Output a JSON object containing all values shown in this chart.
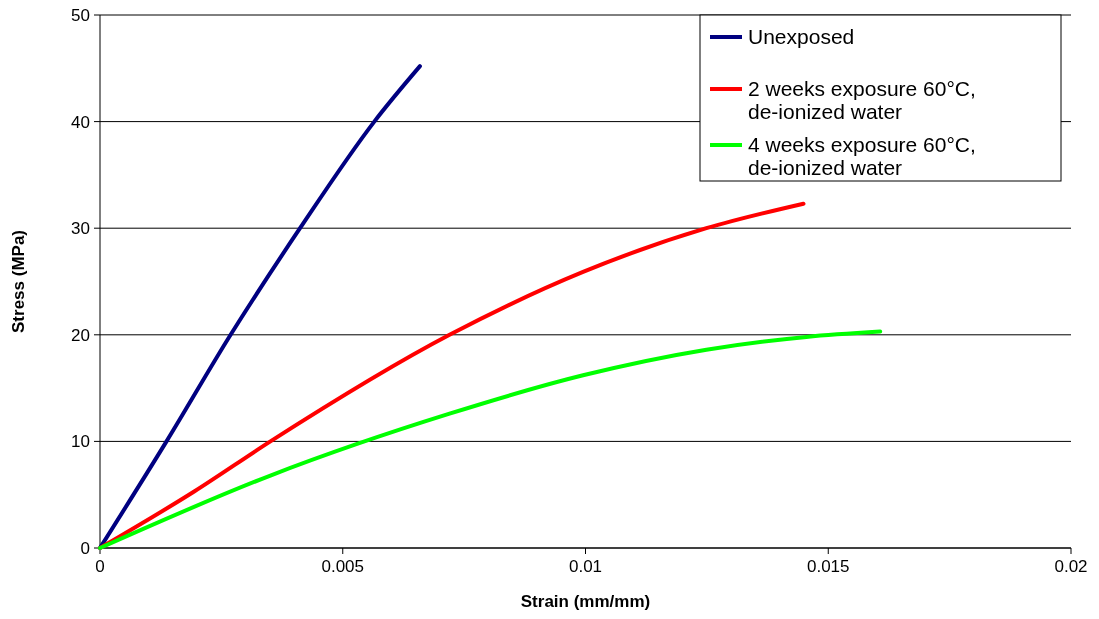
{
  "chart_data": {
    "type": "line",
    "xlabel": "Strain (mm/mm)",
    "ylabel": "Stress (MPa)",
    "xlim": [
      0,
      0.02
    ],
    "xticks": [
      0,
      0.005,
      0.01,
      0.015,
      0.02
    ],
    "ylim": [
      0,
      50
    ],
    "yticks": [
      0,
      10,
      20,
      30,
      40,
      50
    ],
    "grid": "y",
    "legend": "top right",
    "series": [
      {
        "name": "Unexposed",
        "color": "#000080",
        "x": [
          0,
          0.00137,
          0.00269,
          0.00412,
          0.00565,
          0.00659
        ],
        "values": [
          0,
          10,
          20,
          30,
          40,
          45.2
        ]
      },
      {
        "name": "2 weeks exposure 60°C, de-ionized water",
        "color": "#ff0000",
        "x": [
          0,
          0.00194,
          0.00351,
          0.0072,
          0.00995,
          0.01249,
          0.01449
        ],
        "values": [
          0,
          5.3,
          10,
          20,
          25.9,
          30,
          32.3
        ]
      },
      {
        "name": "4 weeks exposure 60°C, de-ionized water",
        "color": "#00ff00",
        "x": [
          0,
          0.00351,
          0.0072,
          0.00995,
          0.01249,
          0.01455,
          0.01607
        ],
        "values": [
          0,
          6.8,
          12.6,
          16.2,
          18.6,
          19.8,
          20.3
        ]
      }
    ]
  }
}
